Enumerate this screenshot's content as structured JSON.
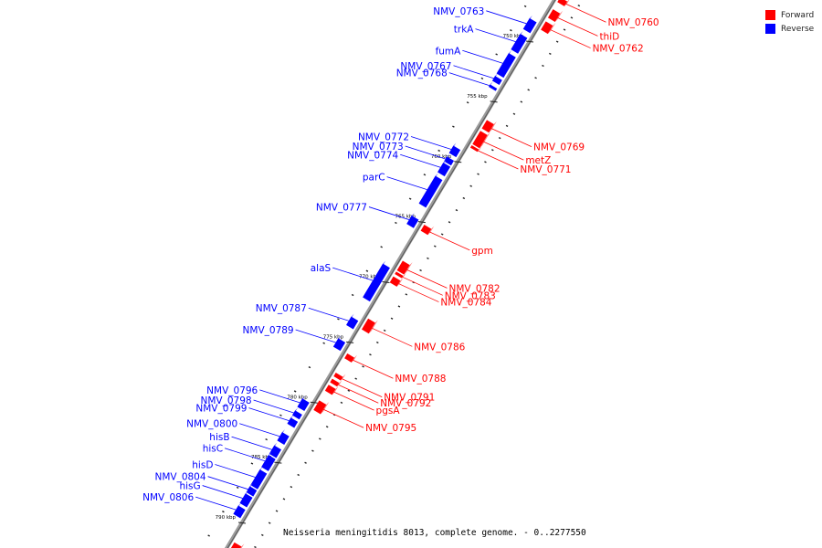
{
  "legend": {
    "forward_label": "Forward",
    "reverse_label": "Reverse",
    "forward_color": "#ff0000",
    "reverse_color": "#0000ff"
  },
  "caption": "Neisseria meningitidis 8013, complete genome. - 0..2277550",
  "colors": {
    "forward": "#ff0000",
    "reverse": "#0000ff",
    "axis": "#888888"
  },
  "chart_data": {
    "type": "genome_map",
    "range_kbp": [
      746,
      792
    ],
    "axis_ticks": [
      {
        "kbp": 750,
        "label": "750 kbp"
      },
      {
        "kbp": 755,
        "label": "755 kbp"
      },
      {
        "kbp": 760,
        "label": "760 kbp"
      },
      {
        "kbp": 765,
        "label": "765 kbp"
      },
      {
        "kbp": 770,
        "label": "770 kbp"
      },
      {
        "kbp": 775,
        "label": "775 kbp"
      },
      {
        "kbp": 780,
        "label": "780 kbp"
      },
      {
        "kbp": 785,
        "label": "785 kbp"
      },
      {
        "kbp": 790,
        "label": "790 kbp"
      }
    ],
    "genes": [
      {
        "name": "NMV_0760",
        "strand": "forward",
        "start": 746.2,
        "end": 746.6
      },
      {
        "name": "thiD",
        "strand": "forward",
        "start": 747.2,
        "end": 747.9
      },
      {
        "name": "NMV_0762",
        "strand": "forward",
        "start": 748.2,
        "end": 748.9
      },
      {
        "name": "NMV_0763",
        "strand": "reverse",
        "start": 748.6,
        "end": 749.5
      },
      {
        "name": "trkA",
        "strand": "reverse",
        "start": 749.9,
        "end": 751.2
      },
      {
        "name": "fumA",
        "strand": "reverse",
        "start": 751.5,
        "end": 753.2
      },
      {
        "name": "NMV_0767",
        "strand": "reverse",
        "start": 753.4,
        "end": 753.8
      },
      {
        "name": "NMV_0768",
        "strand": "reverse",
        "start": 754.1,
        "end": 754.3
      },
      {
        "name": "NMV_0769",
        "strand": "forward",
        "start": 756.4,
        "end": 757.1
      },
      {
        "name": "metZ",
        "strand": "forward",
        "start": 757.3,
        "end": 758.4
      },
      {
        "name": "NMV_0771",
        "strand": "forward",
        "start": 758.5,
        "end": 758.7
      },
      {
        "name": "NMV_0772",
        "strand": "reverse",
        "start": 759.2,
        "end": 759.8
      },
      {
        "name": "NMV_0773",
        "strand": "reverse",
        "start": 760.1,
        "end": 760.5
      },
      {
        "name": "NMV_0774",
        "strand": "reverse",
        "start": 760.6,
        "end": 761.4
      },
      {
        "name": "parC",
        "strand": "reverse",
        "start": 761.7,
        "end": 764.0
      },
      {
        "name": "NMV_0777",
        "strand": "reverse",
        "start": 765.0,
        "end": 765.7
      },
      {
        "name": "gpm",
        "strand": "forward",
        "start": 765.1,
        "end": 765.6
      },
      {
        "name": "NMV_0782",
        "strand": "forward",
        "start": 768.1,
        "end": 768.9
      },
      {
        "name": "NMV_0783",
        "strand": "forward",
        "start": 769.0,
        "end": 769.2
      },
      {
        "name": "NMV_0784",
        "strand": "forward",
        "start": 769.4,
        "end": 769.9
      },
      {
        "name": "alaS",
        "strand": "reverse",
        "start": 769.0,
        "end": 771.8
      },
      {
        "name": "NMV_0786",
        "strand": "forward",
        "start": 772.9,
        "end": 773.8
      },
      {
        "name": "NMV_0787",
        "strand": "reverse",
        "start": 773.4,
        "end": 774.1
      },
      {
        "name": "NMV_0789",
        "strand": "reverse",
        "start": 775.2,
        "end": 775.9
      },
      {
        "name": "NMV_0788",
        "strand": "forward",
        "start": 775.8,
        "end": 776.2
      },
      {
        "name": "NMV_0791",
        "strand": "forward",
        "start": 777.4,
        "end": 777.7
      },
      {
        "name": "NMV_0792",
        "strand": "forward",
        "start": 777.9,
        "end": 778.2
      },
      {
        "name": "pgsA",
        "strand": "forward",
        "start": 778.4,
        "end": 778.9
      },
      {
        "name": "NMV_0795",
        "strand": "forward",
        "start": 779.7,
        "end": 780.5
      },
      {
        "name": "NMV_0796",
        "strand": "reverse",
        "start": 780.2,
        "end": 780.9
      },
      {
        "name": "NMV_0798",
        "strand": "reverse",
        "start": 781.2,
        "end": 781.6
      },
      {
        "name": "NMV_0799",
        "strand": "reverse",
        "start": 781.8,
        "end": 782.3
      },
      {
        "name": "NMV_0800",
        "strand": "reverse",
        "start": 783.0,
        "end": 783.7
      },
      {
        "name": "hisB",
        "strand": "reverse",
        "start": 784.1,
        "end": 784.8
      },
      {
        "name": "hisC",
        "strand": "reverse",
        "start": 784.9,
        "end": 785.9
      },
      {
        "name": "hisD",
        "strand": "reverse",
        "start": 786.1,
        "end": 787.4
      },
      {
        "name": "NMV_0804",
        "strand": "reverse",
        "start": 787.5,
        "end": 788.0
      },
      {
        "name": "hisG",
        "strand": "reverse",
        "start": 788.1,
        "end": 788.9
      },
      {
        "name": "NMV_0806",
        "strand": "reverse",
        "start": 789.1,
        "end": 789.8
      },
      {
        "name": "",
        "strand": "forward",
        "start": 791.5,
        "end": 792.0
      }
    ]
  }
}
